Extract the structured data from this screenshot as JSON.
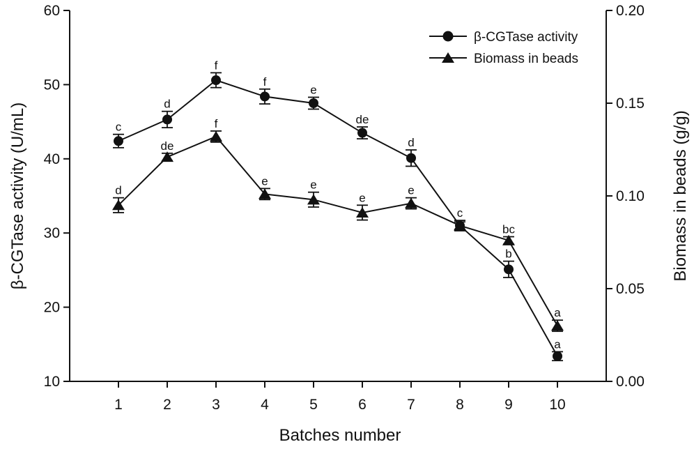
{
  "chart_data": {
    "type": "line",
    "x": [
      1,
      2,
      3,
      4,
      5,
      6,
      7,
      8,
      9,
      10
    ],
    "xlabel": "Batches number",
    "ylabel": "β-CGTase activity (U/mL)",
    "y2label": "Biomass in beads (g/g)",
    "xlim": [
      0,
      11
    ],
    "ylim": [
      10,
      60
    ],
    "y2lim": [
      0.0,
      0.2
    ],
    "xticks": [
      "1",
      "2",
      "3",
      "4",
      "5",
      "6",
      "7",
      "8",
      "9",
      "10"
    ],
    "yticks": [
      "10",
      "20",
      "30",
      "40",
      "50",
      "60"
    ],
    "y2ticks": [
      "0.00",
      "0.05",
      "0.10",
      "0.15",
      "0.20"
    ],
    "series": [
      {
        "name": "β-CGTase activity",
        "axis": "left",
        "marker": "circle",
        "values": [
          42.4,
          45.3,
          50.6,
          48.4,
          47.5,
          43.5,
          40.1,
          31.0,
          25.1,
          13.4
        ],
        "errors": [
          0.9,
          1.1,
          1.0,
          1.0,
          0.8,
          0.8,
          1.1,
          0.7,
          1.1,
          0.6
        ],
        "letters": [
          "c",
          "d",
          "f",
          "f",
          "e",
          "de",
          "d",
          "c",
          "b",
          "a"
        ]
      },
      {
        "name": "Biomass in beads",
        "axis": "right",
        "marker": "triangle",
        "values": [
          0.095,
          0.121,
          0.132,
          0.101,
          0.098,
          0.091,
          0.096,
          0.084,
          0.076,
          0.03
        ],
        "errors": [
          0.004,
          0.002,
          0.003,
          0.003,
          0.004,
          0.004,
          0.003,
          0.002,
          0.002,
          0.003
        ],
        "letters": [
          "d",
          "de",
          "f",
          "e",
          "e",
          "e",
          "e",
          "",
          "bc",
          "a"
        ]
      }
    ],
    "legend": "top-right"
  }
}
